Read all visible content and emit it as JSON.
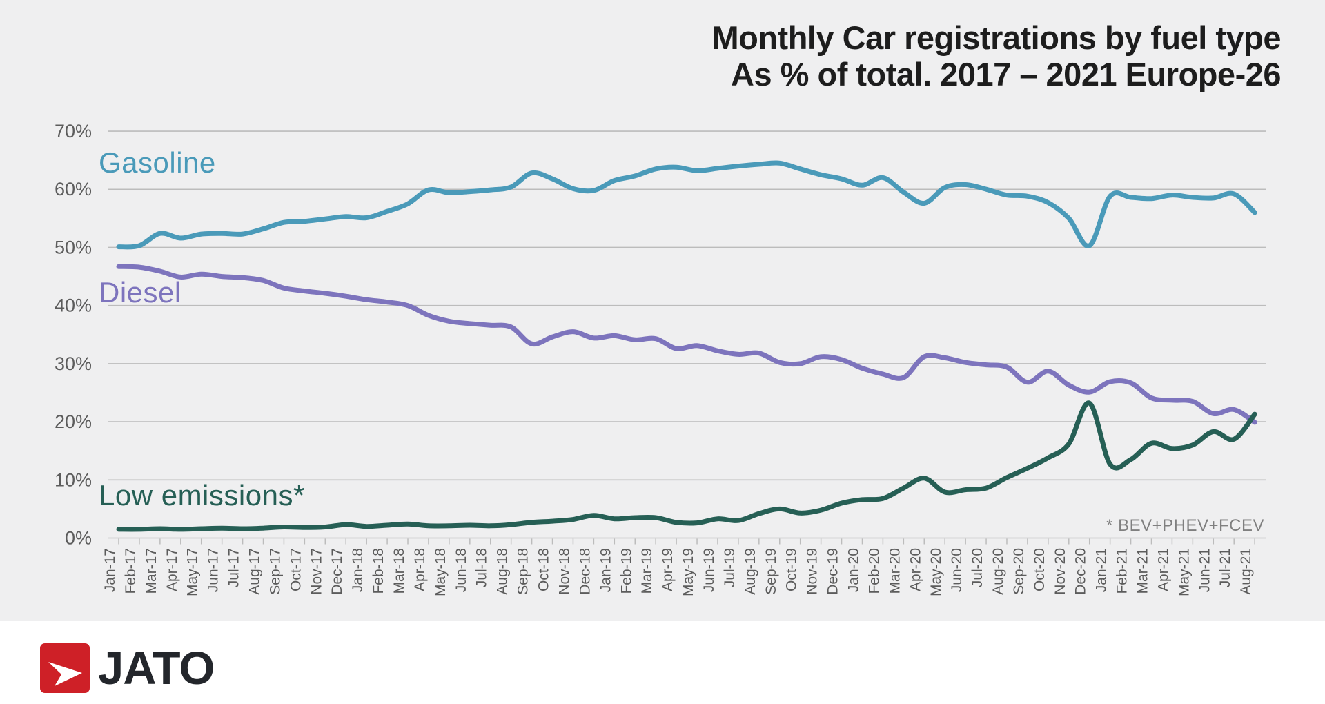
{
  "title": {
    "line1": "Monthly Car registrations by fuel type",
    "line2": "As % of total. 2017 – 2021 Europe-26"
  },
  "footnote": "* BEV+PHEV+FCEV",
  "logo": {
    "text": "JATO",
    "icon": "jato-red-arrow",
    "red": "#ce2027",
    "dark": "#23262b"
  },
  "colors": {
    "background": "#efeff0",
    "lower_band": "#ffffff",
    "gridline": "#bcbcbc",
    "axis_text": "#5c5c5c",
    "title_text": "#1d1d1d",
    "footnote_text": "#7f7f7f"
  },
  "chart_data": {
    "type": "line",
    "title": "Monthly Car registrations by fuel type As % of total. 2017 – 2021 Europe-26",
    "xlabel": "",
    "ylabel": "",
    "ylim": [
      0,
      70
    ],
    "yticks": [
      "0%",
      "10%",
      "20%",
      "30%",
      "40%",
      "50%",
      "60%",
      "70%"
    ],
    "grid": true,
    "legend_position": "inline-labels",
    "x": [
      "Jan-17",
      "Feb-17",
      "Mar-17",
      "Apr-17",
      "May-17",
      "Jun-17",
      "Jul-17",
      "Aug-17",
      "Sep-17",
      "Oct-17",
      "Nov-17",
      "Dec-17",
      "Jan-18",
      "Feb-18",
      "Mar-18",
      "Apr-18",
      "May-18",
      "Jun-18",
      "Jul-18",
      "Aug-18",
      "Sep-18",
      "Oct-18",
      "Nov-18",
      "Dec-18",
      "Jan-19",
      "Feb-19",
      "Mar-19",
      "Apr-19",
      "May-19",
      "Jun-19",
      "Jul-19",
      "Aug-19",
      "Sep-19",
      "Oct-19",
      "Nov-19",
      "Dec-19",
      "Jan-20",
      "Feb-20",
      "Mar-20",
      "Apr-20",
      "May-20",
      "Jun-20",
      "Jul-20",
      "Aug-20",
      "Sep-20",
      "Oct-20",
      "Nov-20",
      "Dec-20",
      "Jan-21",
      "Feb-21",
      "Mar-21",
      "Apr-21",
      "May-21",
      "Jun-21",
      "Jul-21",
      "Aug-21"
    ],
    "series": [
      {
        "name": "Gasoline",
        "color": "#4a9ab9",
        "values": [
          50.1,
          50.3,
          52.4,
          51.6,
          52.3,
          52.4,
          52.3,
          53.2,
          54.3,
          54.5,
          54.9,
          55.3,
          55.1,
          56.2,
          57.5,
          59.9,
          59.4,
          59.6,
          59.9,
          60.4,
          62.8,
          61.8,
          60.1,
          59.8,
          61.5,
          62.3,
          63.5,
          63.8,
          63.2,
          63.6,
          64.0,
          64.3,
          64.5,
          63.5,
          62.5,
          61.8,
          60.7,
          62.0,
          59.5,
          57.6,
          60.3,
          60.8,
          60.0,
          59.0,
          58.8,
          57.7,
          55.0,
          50.3,
          58.8,
          58.6,
          58.4,
          59.0,
          58.6,
          58.5,
          59.2,
          56.0
        ]
      },
      {
        "name": "Diesel",
        "color": "#7d74bd",
        "values": [
          46.7,
          46.6,
          45.9,
          44.9,
          45.4,
          45.0,
          44.8,
          44.3,
          43.0,
          42.5,
          42.1,
          41.6,
          41.0,
          40.6,
          40.0,
          38.3,
          37.3,
          36.9,
          36.6,
          36.3,
          33.4,
          34.6,
          35.5,
          34.4,
          34.8,
          34.1,
          34.3,
          32.6,
          33.1,
          32.2,
          31.6,
          31.8,
          30.2,
          30.0,
          31.2,
          30.7,
          29.2,
          28.2,
          27.6,
          31.2,
          31.0,
          30.2,
          29.8,
          29.4,
          26.8,
          28.7,
          26.3,
          25.1,
          26.9,
          26.7,
          24.1,
          23.7,
          23.5,
          21.4,
          22.1,
          19.9
        ]
      },
      {
        "name": "Low emissions*",
        "color": "#265f55",
        "values": [
          1.5,
          1.5,
          1.6,
          1.5,
          1.6,
          1.7,
          1.6,
          1.7,
          1.9,
          1.8,
          1.9,
          2.3,
          2.0,
          2.2,
          2.4,
          2.1,
          2.1,
          2.2,
          2.1,
          2.3,
          2.7,
          2.9,
          3.2,
          3.9,
          3.3,
          3.5,
          3.5,
          2.7,
          2.6,
          3.3,
          3.0,
          4.2,
          5.0,
          4.3,
          4.8,
          6.0,
          6.6,
          6.8,
          8.6,
          10.3,
          7.9,
          8.3,
          8.6,
          10.4,
          12.0,
          13.8,
          16.2,
          23.2,
          12.7,
          13.5,
          16.3,
          15.4,
          16.0,
          18.3,
          17.0,
          21.3
        ]
      }
    ]
  }
}
